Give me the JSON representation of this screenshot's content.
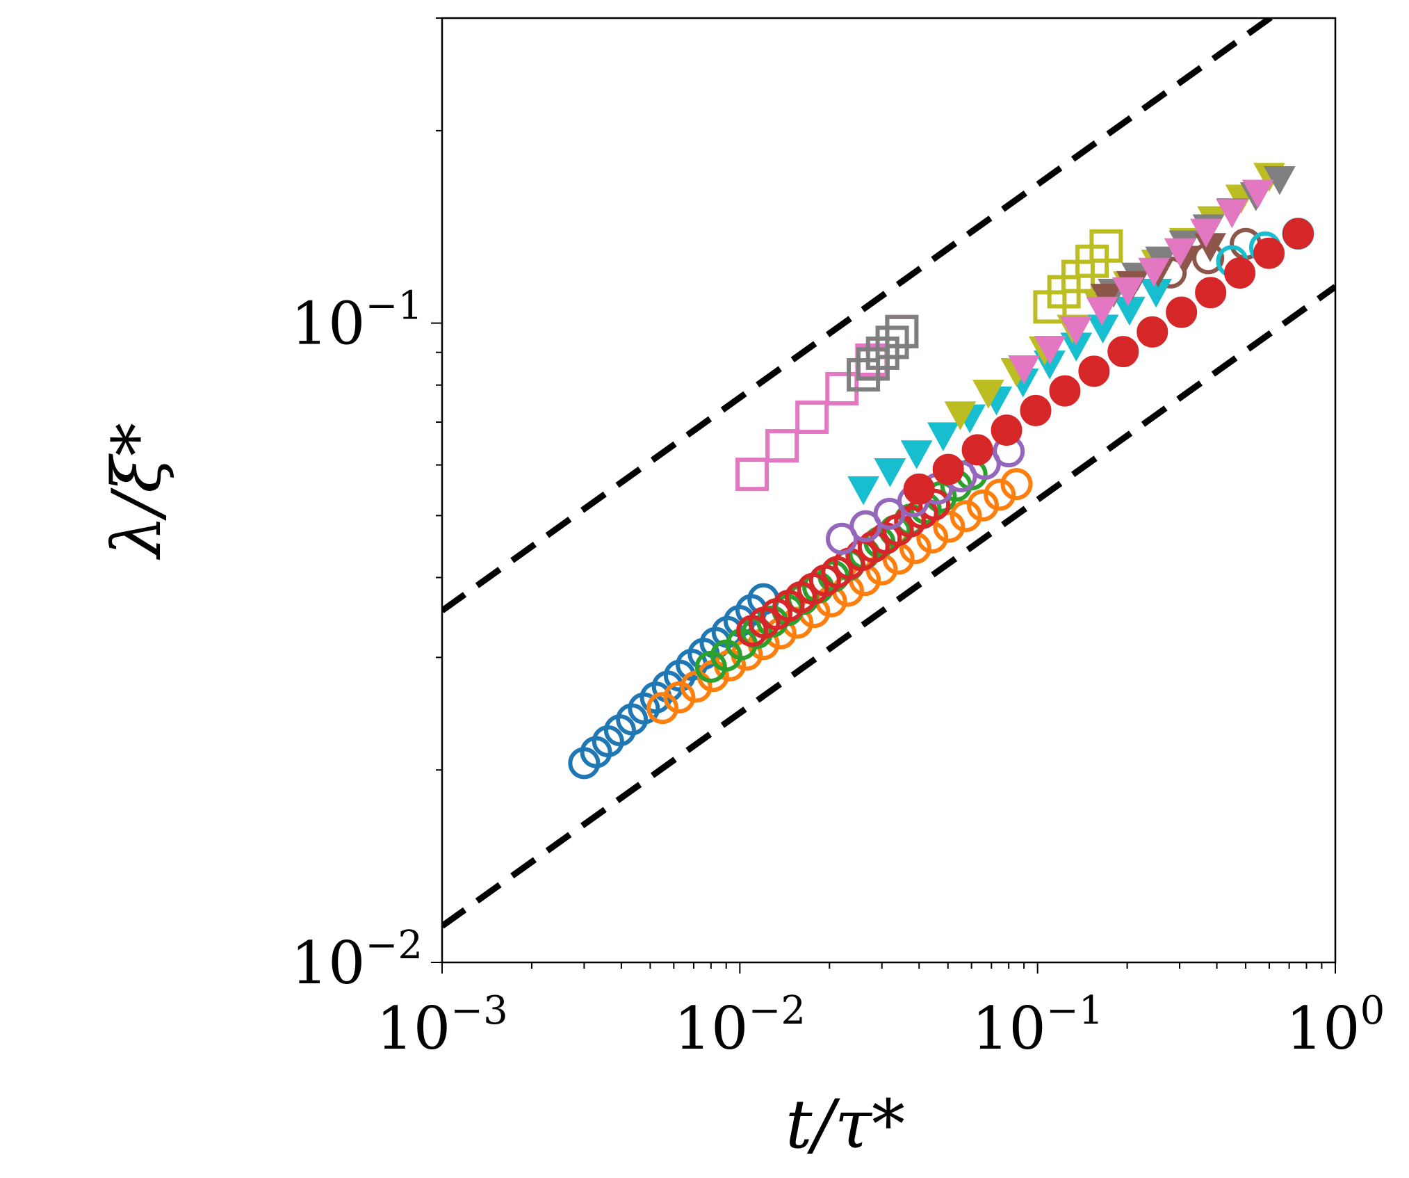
{
  "chart_data": {
    "type": "scatter",
    "title": "",
    "xlabel": "t/τ*",
    "ylabel": "λ/ξ*",
    "xscale": "log",
    "yscale": "log",
    "xlim": [
      0.001,
      1.0
    ],
    "ylim": [
      0.01,
      0.3
    ],
    "x_ticks": [
      {
        "value": 0.001,
        "base": "10",
        "exp": "−3"
      },
      {
        "value": 0.01,
        "base": "10",
        "exp": "−2"
      },
      {
        "value": 0.1,
        "base": "10",
        "exp": "−1"
      },
      {
        "value": 1.0,
        "base": "10",
        "exp": "0"
      }
    ],
    "y_ticks": [
      {
        "value": 0.01,
        "base": "10",
        "exp": "−2"
      },
      {
        "value": 0.1,
        "base": "10",
        "exp": "−1"
      }
    ],
    "reference_lines": [
      {
        "name": "upper-power-law",
        "style": "dashed",
        "color": "#000000",
        "x": [
          0.001,
          1.0
        ],
        "y": [
          0.0355,
          0.355
        ]
      },
      {
        "name": "lower-power-law",
        "style": "dashed",
        "color": "#000000",
        "x": [
          0.001,
          1.0
        ],
        "y": [
          0.0114,
          0.114
        ]
      }
    ],
    "series": [
      {
        "name": "series-1",
        "marker": "circle-open",
        "color": "#1f77b4",
        "x_range": [
          0.003,
          0.012
        ],
        "y_range": [
          0.0205,
          0.037
        ],
        "n": 16
      },
      {
        "name": "series-2",
        "marker": "circle-open",
        "color": "#ff7f0e",
        "x_range": [
          0.0055,
          0.085
        ],
        "y_range": [
          0.025,
          0.056
        ],
        "n": 22
      },
      {
        "name": "series-3",
        "marker": "circle-open",
        "color": "#2ca02c",
        "x_range": [
          0.008,
          0.06
        ],
        "y_range": [
          0.029,
          0.058
        ],
        "n": 18
      },
      {
        "name": "series-4",
        "marker": "circle-open",
        "color": "#d62728",
        "x_range": [
          0.011,
          0.045
        ],
        "y_range": [
          0.033,
          0.052
        ],
        "n": 16
      },
      {
        "name": "series-5",
        "marker": "circle-open",
        "color": "#9467bd",
        "x_range": [
          0.022,
          0.08
        ],
        "y_range": [
          0.046,
          0.063
        ],
        "n": 8
      },
      {
        "name": "series-6",
        "marker": "circle-open",
        "color": "#8c564b",
        "x_range": [
          0.28,
          0.5
        ],
        "y_range": [
          0.12,
          0.133
        ],
        "n": 3
      },
      {
        "name": "series-7",
        "marker": "square-open",
        "color": "#e377c2",
        "x_range": [
          0.011,
          0.035
        ],
        "y_range": [
          0.058,
          0.097
        ],
        "n": 6
      },
      {
        "name": "series-8",
        "marker": "square-open",
        "color": "#7f7f7f",
        "x_range": [
          0.026,
          0.035
        ],
        "y_range": [
          0.083,
          0.097
        ],
        "n": 5
      },
      {
        "name": "series-9",
        "marker": "square-open",
        "color": "#bcbd22",
        "x_range": [
          0.11,
          0.17
        ],
        "y_range": [
          0.106,
          0.132
        ],
        "n": 5
      },
      {
        "name": "series-10",
        "marker": "triangle-down",
        "color": "#17becf",
        "x_range": [
          0.026,
          0.25
        ],
        "y_range": [
          0.055,
          0.112
        ],
        "n": 12
      },
      {
        "name": "series-11",
        "marker": "triangle-down",
        "color": "#bcbd22",
        "x_range": [
          0.055,
          0.6
        ],
        "y_range": [
          0.072,
          0.17
        ],
        "n": 12
      },
      {
        "name": "series-12",
        "marker": "triangle-down",
        "color": "#7f7f7f",
        "x_range": [
          0.18,
          0.65
        ],
        "y_range": [
          0.112,
          0.168
        ],
        "n": 8
      },
      {
        "name": "series-13",
        "marker": "triangle-down",
        "color": "#8c564b",
        "x_range": [
          0.17,
          0.38
        ],
        "y_range": [
          0.11,
          0.132
        ],
        "n": 5
      },
      {
        "name": "series-14",
        "marker": "triangle-down",
        "color": "#e377c2",
        "x_range": [
          0.09,
          0.55
        ],
        "y_range": [
          0.085,
          0.16
        ],
        "n": 10
      },
      {
        "name": "series-15",
        "marker": "circle-open",
        "color": "#17becf",
        "x_range": [
          0.45,
          0.75
        ],
        "y_range": [
          0.125,
          0.138
        ],
        "n": 3
      },
      {
        "name": "series-16",
        "marker": "circle-filled",
        "color": "#d62728",
        "x_range": [
          0.04,
          0.75
        ],
        "y_range": [
          0.055,
          0.138
        ],
        "n": 14
      }
    ]
  }
}
